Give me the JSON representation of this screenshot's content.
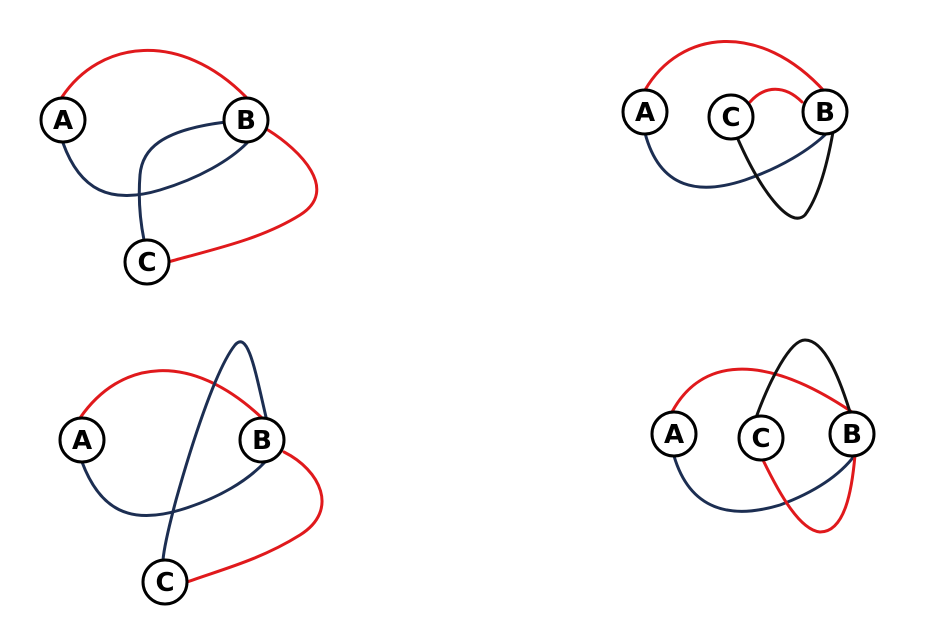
{
  "colors": {
    "red": "#e0191c",
    "navy": "#1c2e52",
    "black": "#111111"
  },
  "diagrams": [
    {
      "id": "top-left",
      "nodes": [
        {
          "id": "A",
          "label": "A"
        },
        {
          "id": "B",
          "label": "B"
        },
        {
          "id": "C",
          "label": "C"
        }
      ],
      "edges": [
        {
          "from": "A",
          "to": "B",
          "color": "red"
        },
        {
          "from": "A",
          "to": "B",
          "color": "navy"
        },
        {
          "from": "B",
          "to": "C",
          "color": "red"
        },
        {
          "from": "B",
          "to": "C",
          "color": "navy"
        }
      ]
    },
    {
      "id": "top-right",
      "nodes": [
        {
          "id": "A",
          "label": "A"
        },
        {
          "id": "C",
          "label": "C"
        },
        {
          "id": "B",
          "label": "B"
        }
      ],
      "edges": [
        {
          "from": "A",
          "to": "B",
          "color": "red"
        },
        {
          "from": "A",
          "to": "B",
          "color": "navy"
        },
        {
          "from": "C",
          "to": "B",
          "color": "red"
        },
        {
          "from": "C",
          "to": "B",
          "color": "black"
        }
      ]
    },
    {
      "id": "bottom-left",
      "nodes": [
        {
          "id": "A",
          "label": "A"
        },
        {
          "id": "B",
          "label": "B"
        },
        {
          "id": "C",
          "label": "C"
        }
      ],
      "edges": [
        {
          "from": "A",
          "to": "B",
          "color": "red"
        },
        {
          "from": "A",
          "to": "B",
          "color": "navy"
        },
        {
          "from": "B",
          "to": "C",
          "color": "red"
        },
        {
          "from": "B",
          "to": "C",
          "color": "navy"
        }
      ]
    },
    {
      "id": "bottom-right",
      "nodes": [
        {
          "id": "A",
          "label": "A"
        },
        {
          "id": "C",
          "label": "C"
        },
        {
          "id": "B",
          "label": "B"
        }
      ],
      "edges": [
        {
          "from": "A",
          "to": "B",
          "color": "red"
        },
        {
          "from": "A",
          "to": "B",
          "color": "navy"
        },
        {
          "from": "C",
          "to": "B",
          "color": "black"
        },
        {
          "from": "C",
          "to": "B",
          "color": "red"
        }
      ]
    }
  ]
}
